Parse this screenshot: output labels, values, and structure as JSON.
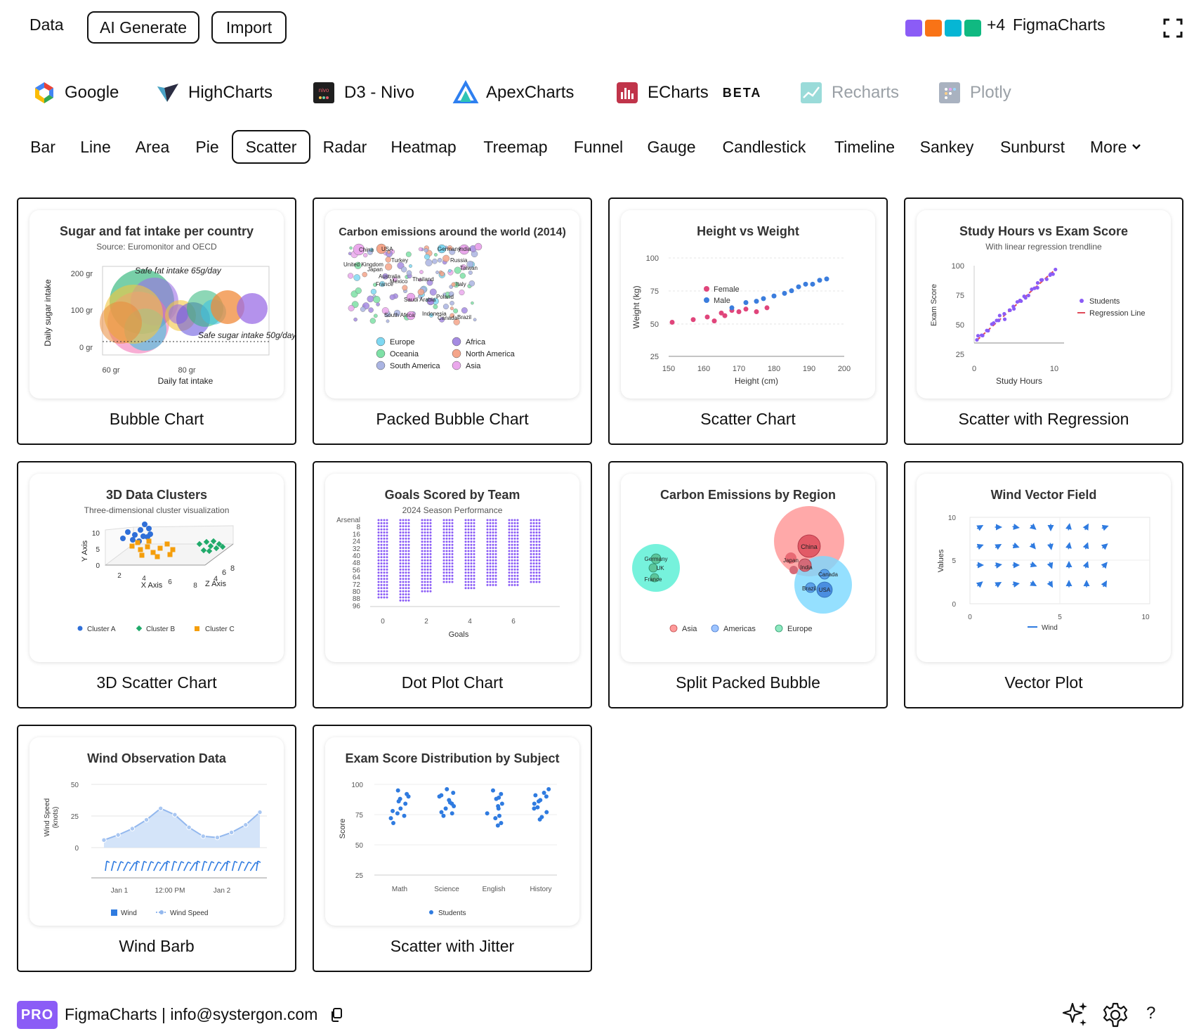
{
  "topbar": {
    "data_label": "Data",
    "ai_generate_label": "AI Generate",
    "import_label": "Import",
    "swatches": [
      "#8b5cf6",
      "#f97316",
      "#06b6d4",
      "#10b981"
    ],
    "more_count": "+4",
    "brand": "FigmaCharts"
  },
  "libraries": [
    {
      "label": "Google",
      "icon": "google-icon"
    },
    {
      "label": "HighCharts",
      "icon": "highcharts-icon"
    },
    {
      "label": "D3 - Nivo",
      "icon": "nivo-icon"
    },
    {
      "label": "ApexCharts",
      "icon": "apexcharts-icon"
    },
    {
      "label": "ECharts",
      "icon": "echarts-icon",
      "badge": "BETA"
    },
    {
      "label": "Recharts",
      "icon": "recharts-icon",
      "disabled": true
    },
    {
      "label": "Plotly",
      "icon": "plotly-icon",
      "disabled": true
    }
  ],
  "chart_types": [
    "Bar",
    "Line",
    "Area",
    "Pie",
    "Scatter",
    "Radar",
    "Heatmap",
    "Treemap",
    "Funnel",
    "Gauge",
    "Candlestick",
    "Timeline",
    "Sankey",
    "Sunburst",
    "More"
  ],
  "active_type": "Scatter",
  "cards": [
    {
      "caption": "Bubble Chart",
      "title": "Sugar and fat intake per country",
      "subtitle": "Source: Euromonitor and OECD",
      "ylabel": "Daily sugar intake",
      "xlabel": "Daily fat intake",
      "yticks": [
        "200 gr",
        "100 gr",
        "0 gr"
      ],
      "xticks": [
        "60 gr",
        "80 gr"
      ],
      "annot1": "Safe fat intake 65g/day",
      "annot2": "Safe sugar intake 50g/day"
    },
    {
      "caption": "Packed Bubble Chart",
      "title": "Carbon emissions around the world (2014)",
      "labels": [
        "China",
        "USA",
        "Germany",
        "India",
        "United Kingdom",
        "Japan",
        "Turkey",
        "Russia",
        "Taiwan",
        "Australia",
        "Thailand",
        "France",
        "Mexico",
        "Italy",
        "Saudi Arabia",
        "Poland",
        "South Africa",
        "Indonesia",
        "Canada",
        "Brazil"
      ],
      "legend": [
        "Europe",
        "Africa",
        "Oceania",
        "North America",
        "South America",
        "Asia"
      ]
    },
    {
      "caption": "Scatter Chart",
      "title": "Height vs Weight",
      "ylabel": "Weight (kg)",
      "xlabel": "Height (cm)",
      "yticks": [
        "100",
        "75",
        "50",
        "25"
      ],
      "xticks": [
        "150",
        "160",
        "170",
        "180",
        "190",
        "200"
      ],
      "legend": [
        "Female",
        "Male"
      ]
    },
    {
      "caption": "Scatter with Regression",
      "title": "Study Hours vs Exam Score",
      "subtitle": "With linear regression trendline",
      "ylabel": "Exam Score",
      "xlabel": "Study Hours",
      "yticks": [
        "100",
        "75",
        "50",
        "25"
      ],
      "xticks": [
        "0",
        "10"
      ],
      "legend": [
        "Students",
        "Regression Line"
      ]
    },
    {
      "caption": "3D Scatter Chart",
      "title": "3D Data Clusters",
      "subtitle": "Three-dimensional cluster visualization",
      "ylabel": "Y Axis",
      "xlabel": "X Axis",
      "zlabel": "Z Axis",
      "yticks": [
        "10",
        "5",
        "0"
      ],
      "xticks": [
        "2",
        "4",
        "6",
        "8"
      ],
      "zticks": [
        "4",
        "6",
        "8"
      ],
      "legend": [
        "Cluster A",
        "Cluster B",
        "Cluster C"
      ]
    },
    {
      "caption": "Dot Plot Chart",
      "title": "Goals Scored by Team",
      "subtitle": "2024 Season Performance",
      "xlabel": "Goals",
      "yticks": [
        "Arsenal",
        "8",
        "16",
        "24",
        "32",
        "40",
        "48",
        "56",
        "64",
        "72",
        "80",
        "88",
        "96"
      ],
      "xticks": [
        "0",
        "2",
        "4",
        "6"
      ]
    },
    {
      "caption": "Split Packed Bubble",
      "title": "Carbon Emissions by Region",
      "labels": [
        "Germany",
        "UK",
        "France",
        "China",
        "Japan",
        "India",
        "Canada",
        "Brazil",
        "USA"
      ],
      "legend": [
        "Asia",
        "Americas",
        "Europe"
      ]
    },
    {
      "caption": "Vector Plot",
      "title": "Wind Vector Field",
      "ylabel": "Values",
      "yticks": [
        "10",
        "5",
        "0"
      ],
      "xticks": [
        "0",
        "5",
        "10"
      ],
      "legend": [
        "Wind"
      ]
    },
    {
      "caption": "Wind Barb",
      "title": "Wind Observation Data",
      "ylabel": "Wind Speed (knots)",
      "ylabel1": "Wind Speed",
      "ylabel2": "(knots)",
      "yticks": [
        "50",
        "25",
        "0"
      ],
      "xticks": [
        "Jan 1",
        "12:00 PM",
        "Jan 2"
      ],
      "legend": [
        "Wind",
        "Wind Speed"
      ]
    },
    {
      "caption": "Scatter with Jitter",
      "title": "Exam Score Distribution by Subject",
      "ylabel": "Score",
      "yticks": [
        "100",
        "75",
        "50",
        "25"
      ],
      "xticks": [
        "Math",
        "Science",
        "English",
        "History"
      ],
      "legend": [
        "Students"
      ]
    }
  ],
  "chart_data": [
    {
      "type": "scatter",
      "title": "Height vs Weight",
      "xlabel": "Height (cm)",
      "ylabel": "Weight (kg)",
      "xlim": [
        150,
        200
      ],
      "ylim": [
        25,
        100
      ],
      "series": [
        {
          "name": "Female",
          "color": "#e0457b",
          "x": [
            151,
            157,
            161,
            163,
            165,
            166,
            168,
            170,
            172,
            175,
            178
          ],
          "y": [
            51,
            53,
            55,
            52,
            58,
            56,
            60,
            59,
            61,
            59,
            62
          ]
        },
        {
          "name": "Male",
          "color": "#3b7ddd",
          "x": [
            168,
            172,
            175,
            177,
            180,
            183,
            185,
            187,
            189,
            191,
            193,
            195
          ],
          "y": [
            62,
            66,
            67,
            69,
            71,
            73,
            75,
            78,
            80,
            80,
            83,
            84
          ]
        }
      ]
    },
    {
      "type": "scatter",
      "title": "Exam Score Distribution by Subject",
      "ylabel": "Score",
      "categories": [
        "Math",
        "Science",
        "English",
        "History"
      ],
      "ylim": [
        25,
        100
      ],
      "series": [
        {
          "name": "Math",
          "y": [
            95,
            92,
            88,
            84,
            80,
            76,
            72,
            68,
            90,
            86,
            78,
            74
          ]
        },
        {
          "name": "Science",
          "y": [
            96,
            93,
            90,
            87,
            84,
            80,
            77,
            74,
            91,
            85,
            82,
            76
          ]
        },
        {
          "name": "English",
          "y": [
            95,
            92,
            88,
            84,
            80,
            76,
            72,
            68,
            66,
            89,
            82,
            74
          ]
        },
        {
          "name": "History",
          "y": [
            96,
            93,
            90,
            87,
            84,
            80,
            77,
            73,
            91,
            86,
            81,
            71
          ]
        }
      ]
    },
    {
      "type": "area",
      "title": "Wind Observation Data",
      "ylabel": "Wind Speed (knots)",
      "ylim": [
        0,
        50
      ],
      "xticks": [
        "Jan 1",
        "12:00 PM",
        "Jan 2"
      ],
      "series": [
        {
          "name": "Wind Speed",
          "values": [
            6,
            10,
            15,
            22,
            31,
            26,
            16,
            9,
            8,
            12,
            18,
            28
          ]
        }
      ]
    }
  ],
  "footer": {
    "badge": "PRO",
    "text": "FigmaCharts | info@systergon.com"
  }
}
